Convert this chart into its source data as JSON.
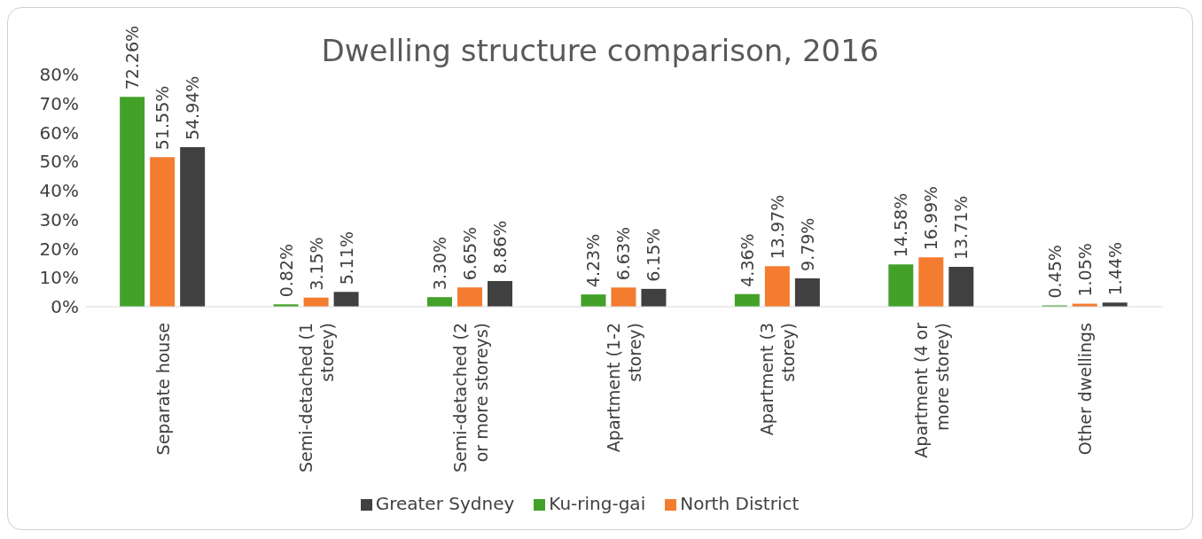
{
  "chart_data": {
    "type": "bar",
    "title": "Dwelling structure comparison, 2016",
    "categories": [
      "Separate house",
      "Semi-detached (1 storey)",
      "Semi-detached (2 or more storeys)",
      "Apartment (1-2 storey)",
      "Apartment (3 storey)",
      "Apartment (4 or more storey)",
      "Other dwellings"
    ],
    "series": [
      {
        "name": "Ku-ring-gai",
        "color": "#43a12a",
        "values": [
          72.26,
          0.82,
          3.3,
          4.23,
          4.36,
          14.58,
          0.45
        ],
        "value_labels": [
          "72.26%",
          "0.82%",
          "3.30%",
          "4.23%",
          "4.36%",
          "14.58%",
          "0.45%"
        ]
      },
      {
        "name": "North District",
        "color": "#f47c30",
        "values": [
          51.55,
          3.15,
          6.65,
          6.63,
          13.97,
          16.99,
          1.05
        ],
        "value_labels": [
          "51.55%",
          "3.15%",
          "6.65%",
          "6.63%",
          "13.97%",
          "16.99%",
          "1.05%"
        ]
      },
      {
        "name": "Greater Sydney",
        "color": "#404040",
        "values": [
          54.94,
          5.11,
          8.86,
          6.15,
          9.79,
          13.71,
          1.44
        ],
        "value_labels": [
          "54.94%",
          "5.11%",
          "8.86%",
          "6.15%",
          "9.79%",
          "13.71%",
          "1.44%"
        ]
      }
    ],
    "ylim": [
      0,
      80
    ],
    "yticks": [
      {
        "value": 0,
        "label": "0%"
      },
      {
        "value": 10,
        "label": "10%"
      },
      {
        "value": 20,
        "label": "20%"
      },
      {
        "value": 30,
        "label": "30%"
      },
      {
        "value": 40,
        "label": "40%"
      },
      {
        "value": 50,
        "label": "50%"
      },
      {
        "value": 60,
        "label": "60%"
      },
      {
        "value": 70,
        "label": "70%"
      },
      {
        "value": 80,
        "label": "80%"
      }
    ],
    "grid": false,
    "legend": "bottom"
  }
}
